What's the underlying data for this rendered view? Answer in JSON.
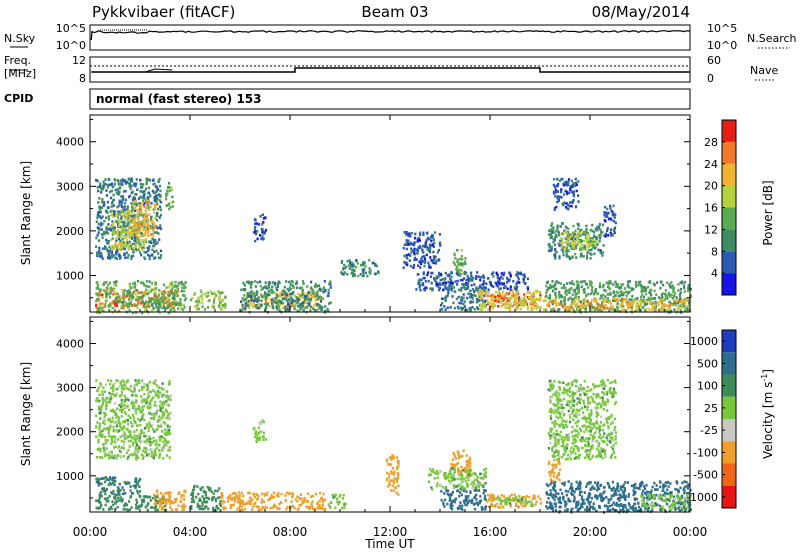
{
  "header": {
    "radar": "Pykkvibaer (fitACF)",
    "beam": "Beam 03",
    "date": "08/May/2014"
  },
  "noise_panel": {
    "left_label": "N.Sky",
    "left_ticks": [
      "10^5",
      "10^0"
    ],
    "right_label": "N.Search",
    "right_ticks": [
      "10^5",
      "10^0"
    ]
  },
  "freq_panel": {
    "left_label_1": "Freq.",
    "left_label_2": "[MHz]",
    "left_ticks": [
      "12",
      "8"
    ],
    "right_label": "Nave",
    "right_ticks": [
      "60",
      "0"
    ]
  },
  "cpid": {
    "label": "CPID",
    "value": "normal (fast stereo) 153"
  },
  "colors": {
    "power_scale": [
      "#1414e6",
      "#2a5ab4",
      "#3c8c64",
      "#5aaa50",
      "#b4d23c",
      "#f0b432",
      "#f07828",
      "#e61e14"
    ],
    "velocity_scale": [
      "#1e3cbe",
      "#2d6e8c",
      "#3c8c5a",
      "#78c83c",
      "#c8c8c0",
      "#f0a028",
      "#f06414",
      "#e61414"
    ]
  },
  "chart_data": [
    {
      "type": "heatmap",
      "title": "",
      "ylabel": "Slant Range [km]",
      "xlabel": "",
      "x_range_hours": [
        0,
        24
      ],
      "ylim": [
        180,
        4600
      ],
      "yticks": [
        "1000",
        "2000",
        "3000",
        "4000"
      ],
      "colorbar": {
        "label": "Power [dB]",
        "range": [
          0,
          32
        ],
        "ticks": [
          "4",
          "8",
          "12",
          "16",
          "20",
          "24",
          "28"
        ]
      },
      "regions": [
        {
          "t0": 0.2,
          "t1": 3.5,
          "r0": 300,
          "r1": 700,
          "value": 26
        },
        {
          "t0": 0.2,
          "t1": 3.8,
          "r0": 180,
          "r1": 900,
          "value": 14
        },
        {
          "t0": 4.0,
          "t1": 5.4,
          "r0": 250,
          "r1": 700,
          "value": 16
        },
        {
          "t0": 6.0,
          "t1": 9.3,
          "r0": 280,
          "r1": 650,
          "value": 22
        },
        {
          "t0": 6.0,
          "t1": 9.6,
          "r0": 200,
          "r1": 900,
          "value": 10
        },
        {
          "t0": 0.2,
          "t1": 2.8,
          "r0": 1400,
          "r1": 3200,
          "value": 8
        },
        {
          "t0": 0.8,
          "t1": 2.2,
          "r0": 1600,
          "r1": 2500,
          "value": 18
        },
        {
          "t0": 1.6,
          "t1": 2.6,
          "r0": 1900,
          "r1": 2700,
          "value": 22
        },
        {
          "t0": 3.0,
          "t1": 3.3,
          "r0": 2500,
          "r1": 3100,
          "value": 14
        },
        {
          "t0": 6.5,
          "t1": 7.0,
          "r0": 1800,
          "r1": 2400,
          "value": 6
        },
        {
          "t0": 10.0,
          "t1": 11.5,
          "r0": 1000,
          "r1": 1400,
          "value": 10
        },
        {
          "t0": 12.5,
          "t1": 14.0,
          "r0": 1200,
          "r1": 2000,
          "value": 6
        },
        {
          "t0": 14.5,
          "t1": 15.0,
          "r0": 1000,
          "r1": 1600,
          "value": 14
        },
        {
          "t0": 13.0,
          "t1": 17.5,
          "r0": 700,
          "r1": 1100,
          "value": 6
        },
        {
          "t0": 14.0,
          "t1": 15.8,
          "r0": 250,
          "r1": 800,
          "value": 8
        },
        {
          "t0": 15.8,
          "t1": 18.0,
          "r0": 320,
          "r1": 620,
          "value": 28
        },
        {
          "t0": 15.5,
          "t1": 18.2,
          "r0": 250,
          "r1": 700,
          "value": 20
        },
        {
          "t0": 18.2,
          "t1": 24.0,
          "r0": 200,
          "r1": 900,
          "value": 12
        },
        {
          "t0": 18.2,
          "t1": 24.0,
          "r0": 250,
          "r1": 500,
          "value": 22
        },
        {
          "t0": 18.3,
          "t1": 20.5,
          "r0": 1400,
          "r1": 2200,
          "value": 10
        },
        {
          "t0": 18.8,
          "t1": 20.2,
          "r0": 1600,
          "r1": 2000,
          "value": 18
        },
        {
          "t0": 20.5,
          "t1": 21.0,
          "r0": 1900,
          "r1": 2600,
          "value": 6
        },
        {
          "t0": 18.5,
          "t1": 19.5,
          "r0": 2500,
          "r1": 3200,
          "value": 6
        }
      ]
    },
    {
      "type": "heatmap",
      "title": "",
      "ylabel": "Slant Range [km]",
      "xlabel": "Time UT",
      "x_range_hours": [
        0,
        24
      ],
      "ylim": [
        180,
        4600
      ],
      "yticks": [
        "1000",
        "2000",
        "3000",
        "4000"
      ],
      "xticks": [
        "00:00",
        "04:00",
        "08:00",
        "12:00",
        "16:00",
        "20:00",
        "00:00"
      ],
      "colorbar": {
        "label": "Velocity [m s",
        "label_sup": "-1",
        "label_close": "]",
        "ticks": [
          "1000",
          "500",
          "100",
          "25",
          "-25",
          "-100",
          "-500",
          "-1000"
        ]
      },
      "regions": [
        {
          "t0": 0.2,
          "t1": 3.2,
          "r0": 1400,
          "r1": 3200,
          "value": 0
        },
        {
          "t0": 0.2,
          "t1": 2.0,
          "r0": 600,
          "r1": 1000,
          "value": 100
        },
        {
          "t0": 0.2,
          "t1": 3.0,
          "r0": 250,
          "r1": 600,
          "value": 60
        },
        {
          "t0": 2.5,
          "t1": 3.8,
          "r0": 250,
          "r1": 700,
          "value": -150
        },
        {
          "t0": 4.0,
          "t1": 5.2,
          "r0": 250,
          "r1": 800,
          "value": 60
        },
        {
          "t0": 5.2,
          "t1": 9.4,
          "r0": 250,
          "r1": 650,
          "value": -150
        },
        {
          "t0": 6.5,
          "t1": 7.0,
          "r0": 1800,
          "r1": 2300,
          "value": 0
        },
        {
          "t0": 9.5,
          "t1": 10.2,
          "r0": 300,
          "r1": 600,
          "value": 0
        },
        {
          "t0": 11.8,
          "t1": 12.3,
          "r0": 600,
          "r1": 1500,
          "value": -150
        },
        {
          "t0": 14.4,
          "t1": 15.2,
          "r0": 1000,
          "r1": 1600,
          "value": -150
        },
        {
          "t0": 13.5,
          "t1": 15.8,
          "r0": 700,
          "r1": 1200,
          "value": 0
        },
        {
          "t0": 14.0,
          "t1": 15.8,
          "r0": 250,
          "r1": 700,
          "value": 200
        },
        {
          "t0": 15.8,
          "t1": 18.0,
          "r0": 300,
          "r1": 600,
          "value": -150
        },
        {
          "t0": 16.0,
          "t1": 17.8,
          "r0": 350,
          "r1": 550,
          "value": 0
        },
        {
          "t0": 18.2,
          "t1": 24.0,
          "r0": 200,
          "r1": 900,
          "value": 200
        },
        {
          "t0": 18.3,
          "t1": 21.0,
          "r0": 1400,
          "r1": 3200,
          "value": 0
        },
        {
          "t0": 18.3,
          "t1": 18.8,
          "r0": 900,
          "r1": 1400,
          "value": -150
        },
        {
          "t0": 22.0,
          "t1": 24.0,
          "r0": 250,
          "r1": 600,
          "value": 0
        }
      ]
    }
  ]
}
